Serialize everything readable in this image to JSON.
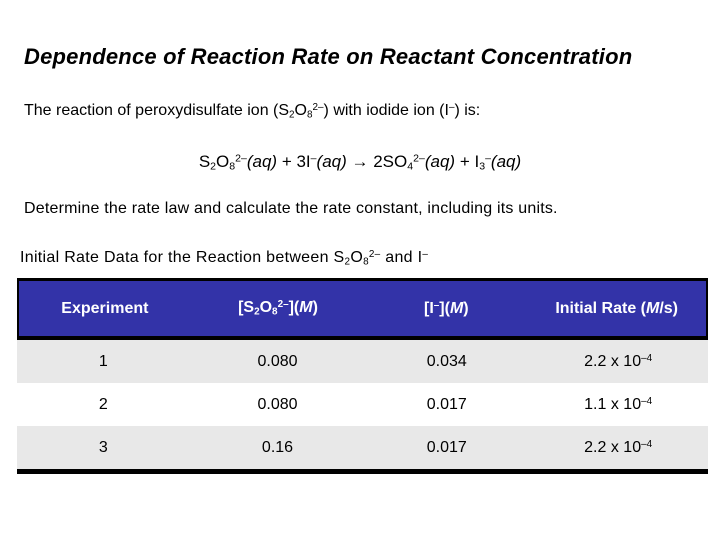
{
  "slide": {
    "title": "Dependence of Reaction Rate on Reactant Concentration",
    "intro": [
      {
        "t": "The reaction of peroxydisulfate ion (S"
      },
      {
        "t": "2",
        "s": "sub"
      },
      {
        "t": "O"
      },
      {
        "t": "8",
        "s": "sub"
      },
      {
        "t": "2–",
        "s": "sup"
      },
      {
        "t": ") with iodide ion (I"
      },
      {
        "t": "–",
        "s": "sup"
      },
      {
        "t": ") is:"
      }
    ],
    "equation": [
      {
        "t": "S"
      },
      {
        "t": "2",
        "s": "sub"
      },
      {
        "t": "O"
      },
      {
        "t": "8",
        "s": "sub"
      },
      {
        "t": "2–",
        "s": "sup"
      },
      {
        "t": "(",
        "s": "i"
      },
      {
        "t": "aq",
        "s": "i"
      },
      {
        "t": ")",
        "s": "i"
      },
      {
        "t": " + 3I"
      },
      {
        "t": "–",
        "s": "sup"
      },
      {
        "t": "(",
        "s": "i"
      },
      {
        "t": "aq",
        "s": "i"
      },
      {
        "t": ")",
        "s": "i"
      },
      {
        "t": " → 2SO"
      },
      {
        "t": "4",
        "s": "sub"
      },
      {
        "t": "2–",
        "s": "sup"
      },
      {
        "t": "(",
        "s": "i"
      },
      {
        "t": "aq",
        "s": "i"
      },
      {
        "t": ")",
        "s": "i"
      },
      {
        "t": " + I"
      },
      {
        "t": "3",
        "s": "sub"
      },
      {
        "t": "–",
        "s": "sup"
      },
      {
        "t": "(",
        "s": "i"
      },
      {
        "t": "aq",
        "s": "i"
      },
      {
        "t": ")",
        "s": "i"
      }
    ],
    "determine": "Determine the rate law and calculate the rate constant, including its units.",
    "table_caption": [
      {
        "t": "Initial Rate Data for the Reaction between S"
      },
      {
        "t": "2",
        "s": "sub"
      },
      {
        "t": "O"
      },
      {
        "t": "8",
        "s": "sub"
      },
      {
        "t": "2–",
        "s": "sup"
      },
      {
        "t": " and I"
      },
      {
        "t": "–",
        "s": "sup"
      }
    ],
    "table": {
      "headers": {
        "experiment": [
          {
            "t": "Experiment"
          }
        ],
        "s2o8": [
          {
            "t": "[S"
          },
          {
            "t": "2",
            "s": "sub"
          },
          {
            "t": "O"
          },
          {
            "t": "8",
            "s": "sub"
          },
          {
            "t": "2–",
            "s": "sup"
          },
          {
            "t": "]("
          },
          {
            "t": "M",
            "s": "i"
          },
          {
            "t": ")"
          }
        ],
        "iodide": [
          {
            "t": "[I"
          },
          {
            "t": "–",
            "s": "sup"
          },
          {
            "t": "]("
          },
          {
            "t": "M",
            "s": "i"
          },
          {
            "t": ")"
          }
        ],
        "initial_rate": [
          {
            "t": "Initial Rate ("
          },
          {
            "t": "M",
            "s": "i"
          },
          {
            "t": "/s)"
          }
        ]
      },
      "rows": [
        {
          "cells": [
            [
              {
                "t": "1"
              }
            ],
            [
              {
                "t": "0.080"
              }
            ],
            [
              {
                "t": "0.034"
              }
            ],
            [
              {
                "t": "2.2 x 10"
              },
              {
                "t": "–4",
                "s": "sup"
              }
            ]
          ]
        },
        {
          "cells": [
            [
              {
                "t": "2"
              }
            ],
            [
              {
                "t": "0.080"
              }
            ],
            [
              {
                "t": "0.017"
              }
            ],
            [
              {
                "t": "1.1 x 10"
              },
              {
                "t": "–4",
                "s": "sup"
              }
            ]
          ]
        },
        {
          "cells": [
            [
              {
                "t": "3"
              }
            ],
            [
              {
                "t": "0.16"
              }
            ],
            [
              {
                "t": "0.017"
              }
            ],
            [
              {
                "t": "2.2 x 10"
              },
              {
                "t": "–4",
                "s": "sup"
              }
            ]
          ]
        }
      ]
    },
    "colors": {
      "header_bg": "#3333a8",
      "header_text": "#ffffff",
      "row_alt_bg": "#e8e8e8",
      "row_plain_bg": "#ffffff",
      "border": "#000000",
      "body_text": "#000000"
    }
  }
}
